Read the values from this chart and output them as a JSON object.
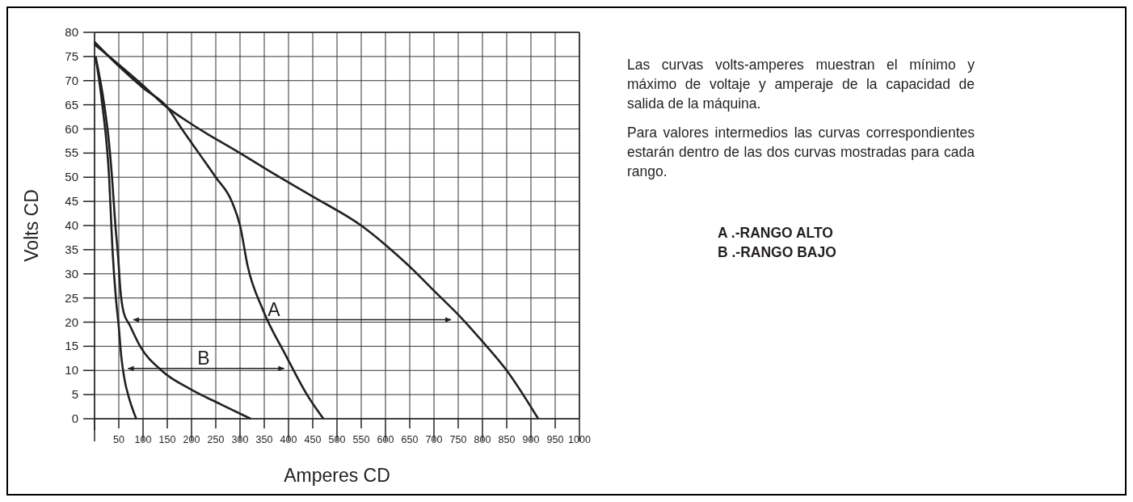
{
  "chart_data": {
    "type": "line",
    "xlabel": "Amperes CD",
    "ylabel": "Volts CD",
    "xlim": [
      0,
      1000
    ],
    "ylim": [
      0,
      80
    ],
    "xticks": [
      {
        "value": 0,
        "label": null
      },
      50,
      100,
      150,
      200,
      250,
      300,
      350,
      400,
      450,
      500,
      550,
      600,
      650,
      700,
      750,
      800,
      850,
      900,
      950,
      1000
    ],
    "yticks": [
      0,
      5,
      10,
      15,
      20,
      25,
      30,
      35,
      40,
      45,
      50,
      55,
      60,
      65,
      70,
      75,
      80
    ],
    "grid": true,
    "marker": "none",
    "line_style": "solid",
    "series": [
      {
        "color": "#231f20",
        "x": [
          0,
          100,
          143,
          200,
          300,
          355,
          450,
          550,
          600,
          650,
          700,
          760,
          800,
          850,
          915
        ],
        "values": [
          77.5,
          69,
          65,
          61,
          55,
          51.6,
          46,
          40,
          36,
          31.5,
          26.5,
          20.5,
          16,
          10,
          0
        ]
      },
      {
        "color": "#231f20",
        "x": [
          0,
          50,
          100,
          150,
          180,
          215,
          250,
          283,
          300,
          316,
          347,
          395,
          438,
          472
        ],
        "values": [
          78,
          73,
          68.5,
          64.5,
          60,
          55,
          50,
          45,
          40,
          31.5,
          22.6,
          13,
          5,
          0
        ]
      },
      {
        "color": "#231f20",
        "x": [
          2,
          20,
          30,
          36,
          43,
          49,
          53,
          60,
          72,
          94,
          138,
          200,
          260,
          322
        ],
        "values": [
          75,
          65,
          57,
          50,
          40,
          33,
          27,
          22,
          19.5,
          15,
          10,
          6,
          3,
          0
        ]
      },
      {
        "color": "#231f20",
        "x": [
          2,
          16,
          30,
          37,
          44,
          50,
          55,
          61,
          72,
          86
        ],
        "values": [
          75,
          65,
          50,
          35,
          25,
          19,
          13,
          8.6,
          4,
          0
        ]
      },
      {
        "color": "#231f20",
        "x": [
          80,
          735
        ],
        "values": [
          20.5,
          20.5
        ]
      },
      {
        "color": "#231f20",
        "x": [
          69,
          391
        ],
        "values": [
          10.4,
          10.4
        ]
      }
    ],
    "annotations": [
      {
        "text": "A",
        "x": 370,
        "y": 20.5
      },
      {
        "text": "B",
        "x": 225,
        "y": 10.4
      },
      "Las curvas volts-amperes muestran el mínimo y máximo de voltaje y amperaje de la capacidad de salida de la máquina.",
      "Para valores intermedios las curvas correspondientes estarán dentro de las dos curvas mostradas para cada rango.",
      "A .-RANGO ALTO",
      "B .-RANGO BAJO"
    ]
  }
}
